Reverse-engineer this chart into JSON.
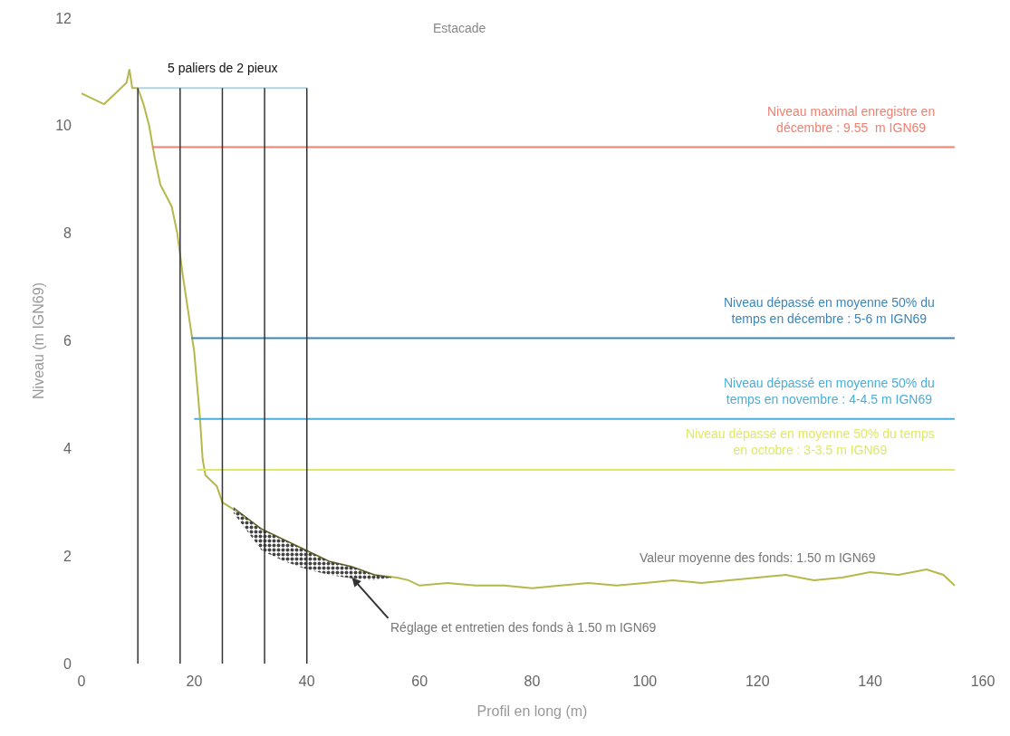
{
  "chart_data": {
    "type": "line",
    "xlabel": "Profil en long (m)",
    "ylabel": "Niveau (m IGN69)",
    "xlim": [
      0,
      160
    ],
    "xticks": [
      0,
      20,
      40,
      60,
      80,
      100,
      120,
      140,
      160
    ],
    "ylim": [
      0,
      12
    ],
    "yticks": [
      0,
      2,
      4,
      6,
      8,
      10,
      12
    ],
    "grid": false,
    "marker": "none",
    "line_style": "solid",
    "series": [
      {
        "color": "#b5b84a",
        "x": [
          0,
          2,
          4,
          6,
          8,
          8.5,
          9,
          10,
          11,
          12,
          13,
          14,
          15,
          16,
          17,
          18,
          19,
          20,
          21,
          21.5,
          22,
          23,
          24,
          25,
          28,
          32,
          36,
          40,
          44,
          48,
          52,
          56,
          58,
          60,
          65,
          70,
          75,
          80,
          85,
          90,
          95,
          100,
          105,
          110,
          115,
          120,
          125,
          130,
          135,
          140,
          145,
          150,
          153,
          155
        ],
        "values": [
          10.6,
          10.5,
          10.4,
          10.6,
          10.8,
          11.05,
          10.7,
          10.7,
          10.4,
          10.0,
          9.4,
          8.9,
          8.7,
          8.5,
          8.0,
          7.2,
          6.5,
          5.8,
          4.6,
          3.8,
          3.5,
          3.4,
          3.3,
          3.0,
          2.8,
          2.5,
          2.3,
          2.1,
          1.9,
          1.8,
          1.65,
          1.6,
          1.55,
          1.45,
          1.5,
          1.45,
          1.45,
          1.4,
          1.45,
          1.5,
          1.45,
          1.5,
          1.55,
          1.5,
          1.55,
          1.6,
          1.65,
          1.55,
          1.6,
          1.7,
          1.65,
          1.75,
          1.65,
          1.45
        ]
      },
      {
        "color": "#444444",
        "x": [
          27,
          32,
          36,
          40,
          44,
          48,
          52,
          55
        ],
        "values": [
          2.9,
          2.5,
          2.3,
          2.1,
          1.9,
          1.8,
          1.65,
          1.6
        ],
        "lower": [
          2.8,
          2.1,
          1.9,
          1.75,
          1.65,
          1.58,
          1.55,
          1.6
        ],
        "upper": [
          2.9,
          2.5,
          2.3,
          2.1,
          1.9,
          1.8,
          1.65,
          1.6
        ]
      },
      {
        "color": "#f08070",
        "x": [
          12.5,
          155
        ],
        "values": [
          9.6,
          9.6
        ]
      },
      {
        "color": "#3d85b8",
        "x": [
          19.5,
          155
        ],
        "values": [
          6.05,
          6.05
        ]
      },
      {
        "color": "#4aaed8",
        "x": [
          20,
          155
        ],
        "values": [
          4.55,
          4.55
        ]
      },
      {
        "color": "#dfe865",
        "x": [
          20.5,
          155
        ],
        "values": [
          3.6,
          3.6
        ]
      },
      {
        "color": "#aed4e0",
        "x": [
          10,
          40
        ],
        "values": [
          10.7,
          10.7
        ]
      },
      {
        "color": "#333333",
        "x": [
          10,
          10
        ],
        "values": [
          0,
          10.7
        ]
      },
      {
        "color": "#333333",
        "x": [
          17.5,
          17.5
        ],
        "values": [
          0,
          10.7
        ]
      },
      {
        "color": "#333333",
        "x": [
          25,
          25
        ],
        "values": [
          0,
          10.7
        ]
      },
      {
        "color": "#333333",
        "x": [
          32.5,
          32.5
        ],
        "values": [
          0,
          10.7
        ]
      },
      {
        "color": "#333333",
        "x": [
          40,
          40
        ],
        "values": [
          0,
          10.7
        ]
      }
    ],
    "annotations": [
      {
        "text": "5 paliers de 2 pieux",
        "x": 25,
        "y": 10.7
      },
      "Estacade",
      {
        "text": "Niveau maximal enregistre en\ndécembre : 9.55  m IGN69",
        "x": 155,
        "y": 9.6
      },
      {
        "text": "Niveau dépassé en moyenne 50% du\ntemps en décembre : 5-6 m IGN69",
        "x": 155,
        "y": 6.05
      },
      {
        "text": "Niveau dépassé en moyenne 50% du\ntemps en novembre : 4-4.5 m IGN69",
        "x": 155,
        "y": 4.55
      },
      {
        "text": "Niveau dépassé en moyenne 50% du temps\nen octobre : 3-3.5 m IGN69",
        "x": 155,
        "y": 3.6
      },
      {
        "text": "Valeur moyenne des fonds: 1.50 m IGN69",
        "x": 120,
        "y": 1.6
      },
      {
        "text": "Réglage et entretien des fonds à 1.50 m IGN69",
        "x": 48,
        "y": 1.6
      }
    ]
  }
}
